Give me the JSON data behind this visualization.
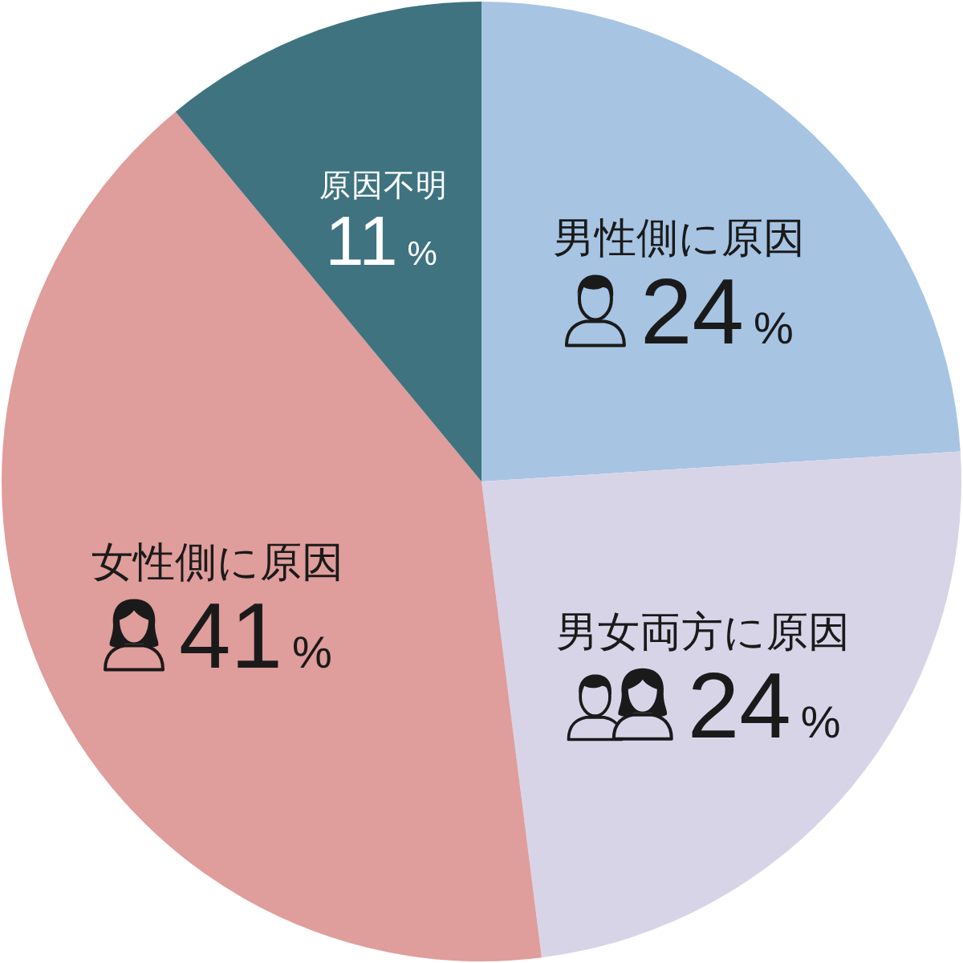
{
  "chart_data": {
    "type": "pie",
    "categories": [
      "男性側に原因",
      "男女両方に原因",
      "女性側に原因",
      "原因不明"
    ],
    "values": [
      24,
      24,
      41,
      11
    ],
    "colors": [
      "#a7c4e3",
      "#d8d4e8",
      "#df9d9b",
      "#3f7380"
    ],
    "value_labels": [
      "24%",
      "24%",
      "41%",
      "11%"
    ]
  }
}
